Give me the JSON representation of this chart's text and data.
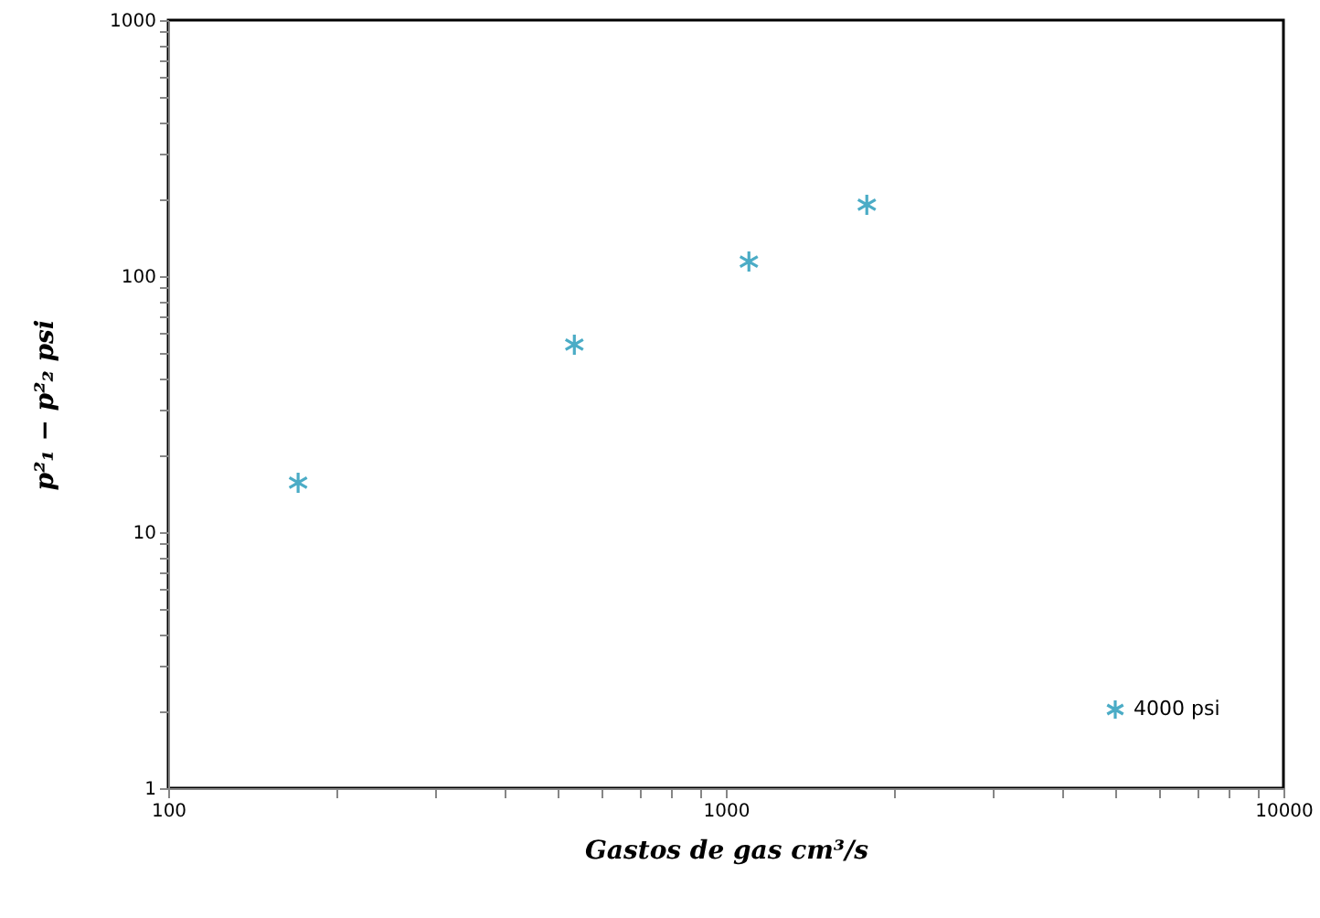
{
  "chart_data": {
    "type": "scatter",
    "xlabel": "Gastos de gas cm³/s",
    "ylabel": "p²₁ − p²₂   psi",
    "x": [
      171,
      535,
      1100,
      1790
    ],
    "series": [
      {
        "name": "4000 psi",
        "color": "#4bacc6",
        "values": [
          15.6,
          54,
          114,
          190
        ]
      }
    ],
    "log": "xy",
    "marker": "cross",
    "legend": "bottom right",
    "grid": false,
    "xlim": [
      100,
      10000
    ],
    "ylim": [
      1,
      1000
    ],
    "xticks": [
      100,
      {
        "value": 200,
        "label": null
      },
      {
        "value": 300,
        "label": null
      },
      {
        "value": 400,
        "label": null
      },
      {
        "value": 500,
        "label": null
      },
      {
        "value": 600,
        "label": null
      },
      {
        "value": 700,
        "label": null
      },
      {
        "value": 800,
        "label": null
      },
      {
        "value": 900,
        "label": null
      },
      1000,
      {
        "value": 2000,
        "label": null
      },
      {
        "value": 3000,
        "label": null
      },
      {
        "value": 4000,
        "label": null
      },
      {
        "value": 5000,
        "label": null
      },
      {
        "value": 6000,
        "label": null
      },
      {
        "value": 7000,
        "label": null
      },
      {
        "value": 8000,
        "label": null
      },
      {
        "value": 9000,
        "label": null
      },
      10000
    ],
    "yticks": [
      1,
      {
        "value": 2,
        "label": null
      },
      {
        "value": 3,
        "label": null
      },
      {
        "value": 4,
        "label": null
      },
      {
        "value": 5,
        "label": null
      },
      {
        "value": 6,
        "label": null
      },
      {
        "value": 7,
        "label": null
      },
      {
        "value": 8,
        "label": null
      },
      {
        "value": 9,
        "label": null
      },
      10,
      {
        "value": 20,
        "label": null
      },
      {
        "value": 30,
        "label": null
      },
      {
        "value": 40,
        "label": null
      },
      {
        "value": 50,
        "label": null
      },
      {
        "value": 60,
        "label": null
      },
      {
        "value": 70,
        "label": null
      },
      {
        "value": 80,
        "label": null
      },
      {
        "value": 90,
        "label": null
      },
      100,
      {
        "value": 200,
        "label": null
      },
      {
        "value": 300,
        "label": null
      },
      {
        "value": 400,
        "label": null
      },
      {
        "value": 500,
        "label": null
      },
      {
        "value": 600,
        "label": null
      },
      {
        "value": 700,
        "label": null
      },
      {
        "value": 800,
        "label": null
      },
      {
        "value": 900,
        "label": null
      },
      1000
    ]
  }
}
